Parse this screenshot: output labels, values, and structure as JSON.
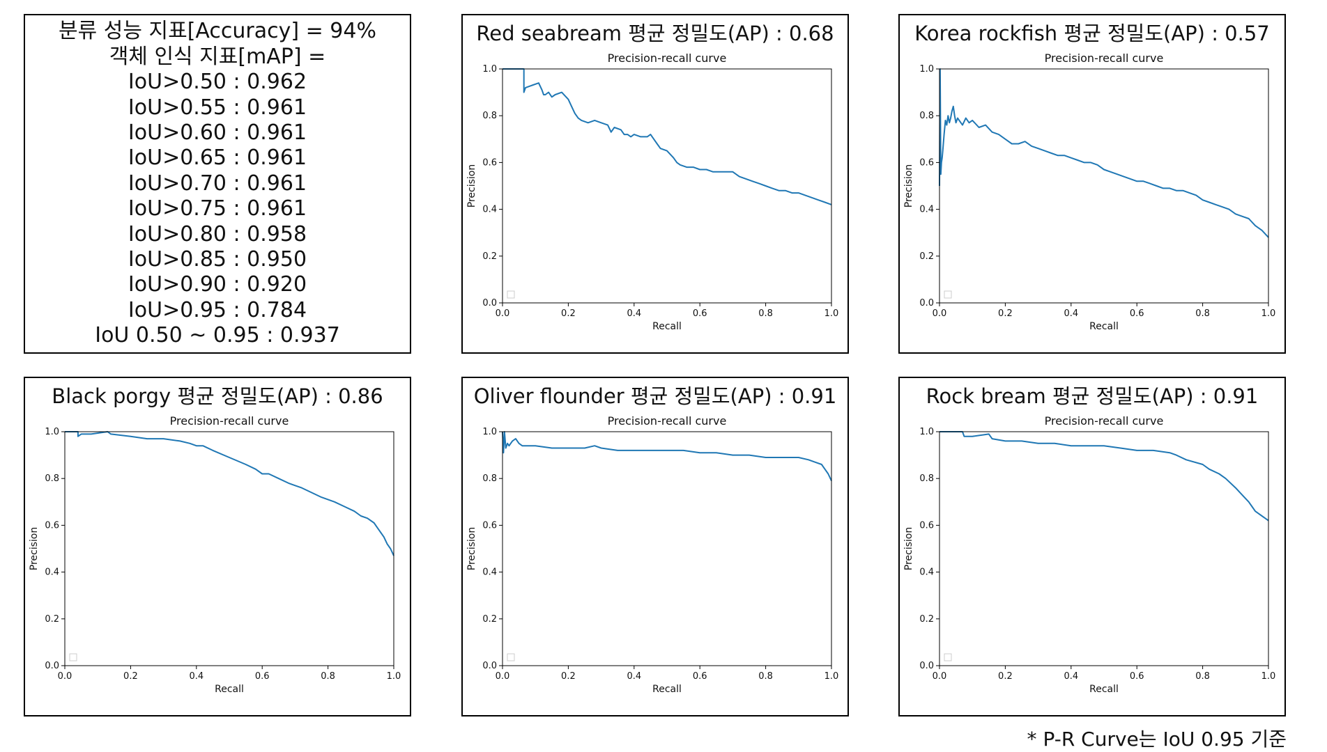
{
  "metrics": {
    "lines": [
      "분류 성능 지표[Accuracy] = 94%",
      "객체 인식 지표[mAP] =",
      "IoU>0.50 : 0.962",
      "IoU>0.55 : 0.961",
      "IoU>0.60 : 0.961",
      "IoU>0.65 : 0.961",
      "IoU>0.70 : 0.961",
      "IoU>0.75 : 0.961",
      "IoU>0.80 : 0.958",
      "IoU>0.85 : 0.950",
      "IoU>0.90 : 0.920",
      "IoU>0.95 : 0.784",
      "IoU 0.50 ~ 0.95 : 0.937"
    ]
  },
  "footnote": "* P-R Curve는 IoU 0.95 기준",
  "series_color": "#1f77b4",
  "chart_data": [
    {
      "type": "line",
      "panel_title": "Red seabream 평균 정밀도(AP) : 0.68",
      "title": "Precision-recall curve",
      "xlabel": "Recall",
      "ylabel": "Precision",
      "xlim": [
        0,
        1
      ],
      "ylim": [
        0,
        1
      ],
      "xticks": [
        "0.0",
        "0.2",
        "0.4",
        "0.6",
        "0.8",
        "1.0"
      ],
      "yticks": [
        "0.0",
        "0.2",
        "0.4",
        "0.6",
        "0.8",
        "1.0"
      ],
      "legend": "empty box, lower-left",
      "x": [
        0,
        0.065,
        0.065,
        0.07,
        0.09,
        0.11,
        0.12,
        0.125,
        0.13,
        0.14,
        0.15,
        0.16,
        0.18,
        0.2,
        0.21,
        0.22,
        0.23,
        0.24,
        0.26,
        0.28,
        0.3,
        0.32,
        0.33,
        0.34,
        0.36,
        0.37,
        0.38,
        0.39,
        0.4,
        0.42,
        0.44,
        0.45,
        0.46,
        0.47,
        0.48,
        0.5,
        0.52,
        0.53,
        0.54,
        0.56,
        0.58,
        0.6,
        0.62,
        0.64,
        0.66,
        0.68,
        0.7,
        0.72,
        0.74,
        0.76,
        0.78,
        0.8,
        0.82,
        0.84,
        0.86,
        0.88,
        0.9,
        0.92,
        0.94,
        0.96,
        0.98,
        1.0
      ],
      "y": [
        1.0,
        1.0,
        0.9,
        0.92,
        0.93,
        0.94,
        0.91,
        0.89,
        0.89,
        0.9,
        0.88,
        0.89,
        0.9,
        0.87,
        0.84,
        0.81,
        0.79,
        0.78,
        0.77,
        0.78,
        0.77,
        0.76,
        0.73,
        0.75,
        0.74,
        0.72,
        0.72,
        0.71,
        0.72,
        0.71,
        0.71,
        0.72,
        0.7,
        0.68,
        0.66,
        0.65,
        0.62,
        0.6,
        0.59,
        0.58,
        0.58,
        0.57,
        0.57,
        0.56,
        0.56,
        0.56,
        0.56,
        0.54,
        0.53,
        0.52,
        0.51,
        0.5,
        0.49,
        0.48,
        0.48,
        0.47,
        0.47,
        0.46,
        0.45,
        0.44,
        0.43,
        0.42
      ]
    },
    {
      "type": "line",
      "panel_title": "Korea rockfish 평균 정밀도(AP) : 0.57",
      "title": "Precision-recall curve",
      "xlabel": "Recall",
      "ylabel": "Precision",
      "xlim": [
        0,
        1
      ],
      "ylim": [
        0,
        1
      ],
      "xticks": [
        "0.0",
        "0.2",
        "0.4",
        "0.6",
        "0.8",
        "1.0"
      ],
      "yticks": [
        "0.0",
        "0.2",
        "0.4",
        "0.6",
        "0.8",
        "1.0"
      ],
      "legend": "empty box, lower-left",
      "x": [
        0,
        0.002,
        0.004,
        0.006,
        0.008,
        0.01,
        0.014,
        0.018,
        0.022,
        0.026,
        0.03,
        0.034,
        0.038,
        0.042,
        0.046,
        0.05,
        0.055,
        0.06,
        0.07,
        0.08,
        0.09,
        0.1,
        0.12,
        0.14,
        0.16,
        0.18,
        0.2,
        0.22,
        0.24,
        0.26,
        0.28,
        0.3,
        0.32,
        0.34,
        0.36,
        0.38,
        0.4,
        0.42,
        0.44,
        0.46,
        0.48,
        0.5,
        0.52,
        0.54,
        0.56,
        0.58,
        0.6,
        0.62,
        0.64,
        0.66,
        0.68,
        0.7,
        0.72,
        0.74,
        0.76,
        0.78,
        0.8,
        0.82,
        0.84,
        0.86,
        0.88,
        0.9,
        0.92,
        0.94,
        0.96,
        0.98,
        1.0
      ],
      "y": [
        0.5,
        1.0,
        0.55,
        0.6,
        0.62,
        0.65,
        0.72,
        0.78,
        0.76,
        0.8,
        0.77,
        0.79,
        0.82,
        0.84,
        0.8,
        0.77,
        0.79,
        0.78,
        0.76,
        0.79,
        0.77,
        0.78,
        0.75,
        0.76,
        0.73,
        0.72,
        0.7,
        0.68,
        0.68,
        0.69,
        0.67,
        0.66,
        0.65,
        0.64,
        0.63,
        0.63,
        0.62,
        0.61,
        0.6,
        0.6,
        0.59,
        0.57,
        0.56,
        0.55,
        0.54,
        0.53,
        0.52,
        0.52,
        0.51,
        0.5,
        0.49,
        0.49,
        0.48,
        0.48,
        0.47,
        0.46,
        0.44,
        0.43,
        0.42,
        0.41,
        0.4,
        0.38,
        0.37,
        0.36,
        0.33,
        0.31,
        0.28
      ]
    },
    {
      "type": "line",
      "panel_title": "Black porgy 평균 정밀도(AP) : 0.86",
      "title": "Precision-recall curve",
      "xlabel": "Recall",
      "ylabel": "Precision",
      "xlim": [
        0,
        1
      ],
      "ylim": [
        0,
        1
      ],
      "xticks": [
        "0.0",
        "0.2",
        "0.4",
        "0.6",
        "0.8",
        "1.0"
      ],
      "yticks": [
        "0.0",
        "0.2",
        "0.4",
        "0.6",
        "0.8",
        "1.0"
      ],
      "legend": "empty box, lower-left",
      "x": [
        0,
        0.04,
        0.04,
        0.05,
        0.08,
        0.13,
        0.14,
        0.2,
        0.25,
        0.3,
        0.35,
        0.38,
        0.4,
        0.42,
        0.45,
        0.5,
        0.55,
        0.58,
        0.6,
        0.62,
        0.65,
        0.68,
        0.7,
        0.72,
        0.75,
        0.78,
        0.8,
        0.82,
        0.85,
        0.88,
        0.9,
        0.92,
        0.94,
        0.95,
        0.96,
        0.97,
        0.98,
        0.99,
        1.0
      ],
      "y": [
        1.0,
        1.0,
        0.98,
        0.99,
        0.99,
        1.0,
        0.99,
        0.98,
        0.97,
        0.97,
        0.96,
        0.95,
        0.94,
        0.94,
        0.92,
        0.89,
        0.86,
        0.84,
        0.82,
        0.82,
        0.8,
        0.78,
        0.77,
        0.76,
        0.74,
        0.72,
        0.71,
        0.7,
        0.68,
        0.66,
        0.64,
        0.63,
        0.61,
        0.59,
        0.57,
        0.55,
        0.52,
        0.5,
        0.47
      ]
    },
    {
      "type": "line",
      "panel_title": "Oliver flounder 평균 정밀도(AP) : 0.91",
      "title": "Precision-recall curve",
      "xlabel": "Recall",
      "ylabel": "Precision",
      "xlim": [
        0,
        1
      ],
      "ylim": [
        0,
        1
      ],
      "xticks": [
        "0.0",
        "0.2",
        "0.4",
        "0.6",
        "0.8",
        "1.0"
      ],
      "yticks": [
        "0.0",
        "0.2",
        "0.4",
        "0.6",
        "0.8",
        "1.0"
      ],
      "legend": "empty box, lower-left",
      "x": [
        0,
        0.003,
        0.006,
        0.01,
        0.015,
        0.02,
        0.03,
        0.04,
        0.05,
        0.06,
        0.08,
        0.1,
        0.15,
        0.2,
        0.25,
        0.28,
        0.3,
        0.35,
        0.4,
        0.45,
        0.5,
        0.55,
        0.6,
        0.65,
        0.7,
        0.75,
        0.8,
        0.85,
        0.9,
        0.93,
        0.95,
        0.97,
        0.98,
        0.99,
        1.0
      ],
      "y": [
        1.0,
        0.91,
        1.0,
        0.93,
        0.95,
        0.94,
        0.96,
        0.97,
        0.95,
        0.94,
        0.94,
        0.94,
        0.93,
        0.93,
        0.93,
        0.94,
        0.93,
        0.92,
        0.92,
        0.92,
        0.92,
        0.92,
        0.91,
        0.91,
        0.9,
        0.9,
        0.89,
        0.89,
        0.89,
        0.88,
        0.87,
        0.86,
        0.84,
        0.82,
        0.79
      ]
    },
    {
      "type": "line",
      "panel_title": "Rock bream 평균 정밀도(AP) : 0.91",
      "title": "Precision-recall curve",
      "xlabel": "Recall",
      "ylabel": "Precision",
      "xlim": [
        0,
        1
      ],
      "ylim": [
        0,
        1
      ],
      "xticks": [
        "0.0",
        "0.2",
        "0.4",
        "0.6",
        "0.8",
        "1.0"
      ],
      "yticks": [
        "0.0",
        "0.2",
        "0.4",
        "0.6",
        "0.8",
        "1.0"
      ],
      "legend": "empty box, lower-left",
      "x": [
        0,
        0.07,
        0.075,
        0.1,
        0.15,
        0.16,
        0.2,
        0.25,
        0.3,
        0.35,
        0.4,
        0.45,
        0.5,
        0.55,
        0.6,
        0.65,
        0.7,
        0.72,
        0.75,
        0.8,
        0.82,
        0.85,
        0.87,
        0.9,
        0.92,
        0.94,
        0.95,
        0.96,
        0.97,
        0.98,
        0.99,
        1.0
      ],
      "y": [
        1.0,
        1.0,
        0.98,
        0.98,
        0.99,
        0.97,
        0.96,
        0.96,
        0.95,
        0.95,
        0.94,
        0.94,
        0.94,
        0.93,
        0.92,
        0.92,
        0.91,
        0.9,
        0.88,
        0.86,
        0.84,
        0.82,
        0.8,
        0.76,
        0.73,
        0.7,
        0.68,
        0.66,
        0.65,
        0.64,
        0.63,
        0.62
      ]
    }
  ]
}
